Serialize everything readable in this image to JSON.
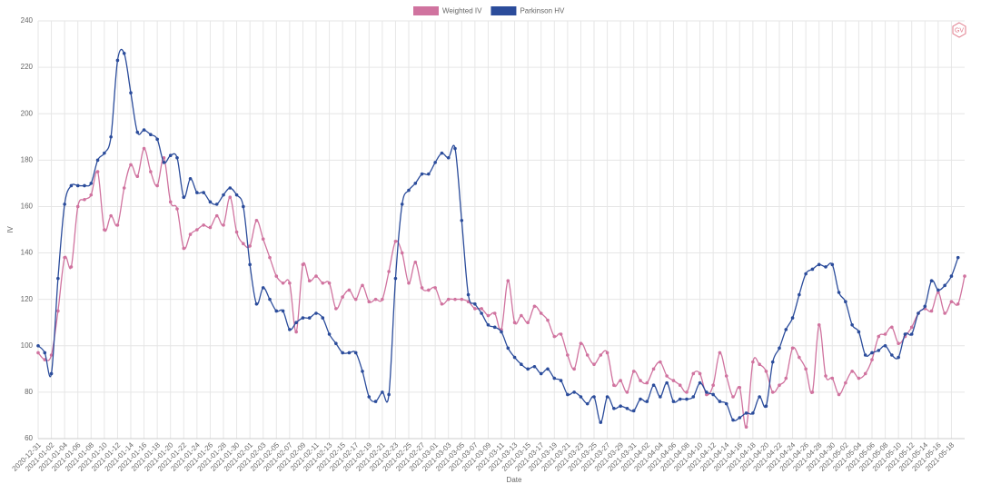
{
  "chart_data": {
    "type": "line",
    "logo": "GV",
    "x_label": "Date",
    "y_label": "IV",
    "categories": [
      "2020-12-31",
      null,
      "2021-01-02",
      null,
      "2021-01-04",
      null,
      "2021-01-06",
      null,
      "2021-01-08",
      null,
      "2021-01-10",
      null,
      "2021-01-12",
      null,
      "2021-01-14",
      null,
      "2021-01-16",
      null,
      "2021-01-18",
      null,
      "2021-01-20",
      null,
      "2021-01-22",
      null,
      "2021-01-24",
      null,
      "2021-01-26",
      null,
      "2021-01-28",
      null,
      "2021-01-30",
      null,
      "2021-02-01",
      null,
      "2021-02-03",
      null,
      "2021-02-05",
      null,
      "2021-02-07",
      null,
      "2021-02-09",
      null,
      "2021-02-11",
      null,
      "2021-02-13",
      null,
      "2021-02-15",
      null,
      "2021-02-17",
      null,
      "2021-02-19",
      null,
      "2021-02-21",
      null,
      "2021-02-23",
      null,
      "2021-02-25",
      null,
      "2021-02-27",
      null,
      "2021-03-01",
      null,
      "2021-03-03",
      null,
      "2021-03-05",
      null,
      "2021-03-07",
      null,
      "2021-03-09",
      null,
      "2021-03-11",
      null,
      "2021-03-13",
      null,
      "2021-03-15",
      null,
      "2021-03-17",
      null,
      "2021-03-19",
      null,
      "2021-03-21",
      null,
      "2021-03-23",
      null,
      "2021-03-25",
      null,
      "2021-03-27",
      null,
      "2021-03-29",
      null,
      "2021-03-31",
      null,
      "2021-04-02",
      null,
      "2021-04-04",
      null,
      "2021-04-06",
      null,
      "2021-04-08",
      null,
      "2021-04-10",
      null,
      "2021-04-12",
      null,
      "2021-04-14",
      null,
      "2021-04-16",
      null,
      "2021-04-18",
      null,
      "2021-04-20",
      null,
      "2021-04-22",
      null,
      "2021-04-24",
      null,
      "2021-04-26",
      null,
      "2021-04-28",
      null,
      "2021-04-30",
      null,
      "2021-05-02",
      null,
      "2021-05-04",
      null,
      "2021-05-06",
      null,
      "2021-05-08",
      null,
      "2021-05-10",
      null,
      "2021-05-12",
      null,
      "2021-05-14",
      null,
      "2021-05-16",
      null,
      "2021-05-18",
      null,
      null
    ],
    "series": [
      {
        "name": "Weighted IV",
        "color": "#d0739f",
        "values": [
          97,
          94,
          96,
          115,
          138,
          134,
          160,
          163,
          165,
          175,
          150,
          156,
          152,
          168,
          178,
          173,
          185,
          175,
          169,
          181,
          162,
          159,
          142,
          148,
          150,
          152,
          151,
          156,
          152,
          164,
          149,
          144,
          143,
          154,
          146,
          138,
          130,
          127,
          127,
          106,
          135,
          128,
          130,
          127,
          127,
          116,
          121,
          124,
          120,
          126,
          119,
          120,
          120,
          132,
          145,
          140,
          127,
          136,
          125,
          124,
          125,
          118,
          120,
          120,
          120,
          119,
          116,
          116,
          113,
          114,
          107,
          128,
          110,
          113,
          110,
          117,
          114,
          111,
          104,
          105,
          96,
          90,
          101,
          96,
          92,
          96,
          97,
          83,
          85,
          80,
          89,
          85,
          84,
          90,
          93,
          87,
          85,
          83,
          80,
          88,
          88,
          79,
          83,
          97,
          87,
          78,
          82,
          65,
          93,
          92,
          89,
          80,
          83,
          86,
          99,
          95,
          90,
          80,
          109,
          87,
          86,
          79,
          84,
          89,
          86,
          88,
          94,
          104,
          105,
          108,
          101,
          104,
          108,
          114,
          116,
          115,
          123,
          114,
          119,
          118,
          130
        ]
      },
      {
        "name": "Parkinson HV",
        "color": "#2b4c9b",
        "values": [
          100,
          97,
          88,
          129,
          161,
          169,
          169,
          169,
          170,
          180,
          183,
          190,
          223,
          226,
          209,
          192,
          193,
          191,
          189,
          179,
          182,
          181,
          164,
          172,
          166,
          166,
          162,
          161,
          165,
          168,
          165,
          160,
          135,
          118,
          125,
          120,
          115,
          115,
          107,
          110,
          112,
          112,
          114,
          112,
          105,
          101,
          97,
          97,
          97,
          89,
          78,
          76,
          80,
          79,
          129,
          161,
          167,
          170,
          174,
          174,
          179,
          183,
          181,
          185,
          154,
          122,
          118,
          114,
          109,
          108,
          106,
          99,
          95,
          92,
          90,
          91,
          88,
          90,
          86,
          85,
          79,
          80,
          78,
          75,
          78,
          67,
          78,
          73,
          74,
          73,
          72,
          77,
          76,
          83,
          78,
          84,
          76,
          77,
          77,
          78,
          84,
          80,
          79,
          76,
          75,
          68,
          69,
          71,
          71,
          78,
          74,
          93,
          99,
          107,
          112,
          122,
          131,
          133,
          135,
          134,
          135,
          123,
          119,
          109,
          106,
          96,
          97,
          98,
          100,
          96,
          95,
          105,
          105,
          114,
          117,
          128,
          124,
          126,
          130,
          138,
          null
        ]
      }
    ],
    "ylim": [
      60,
      240
    ],
    "yticks": [
      60,
      80,
      100,
      120,
      140,
      160,
      180,
      200,
      220,
      240
    ],
    "grid": true
  }
}
